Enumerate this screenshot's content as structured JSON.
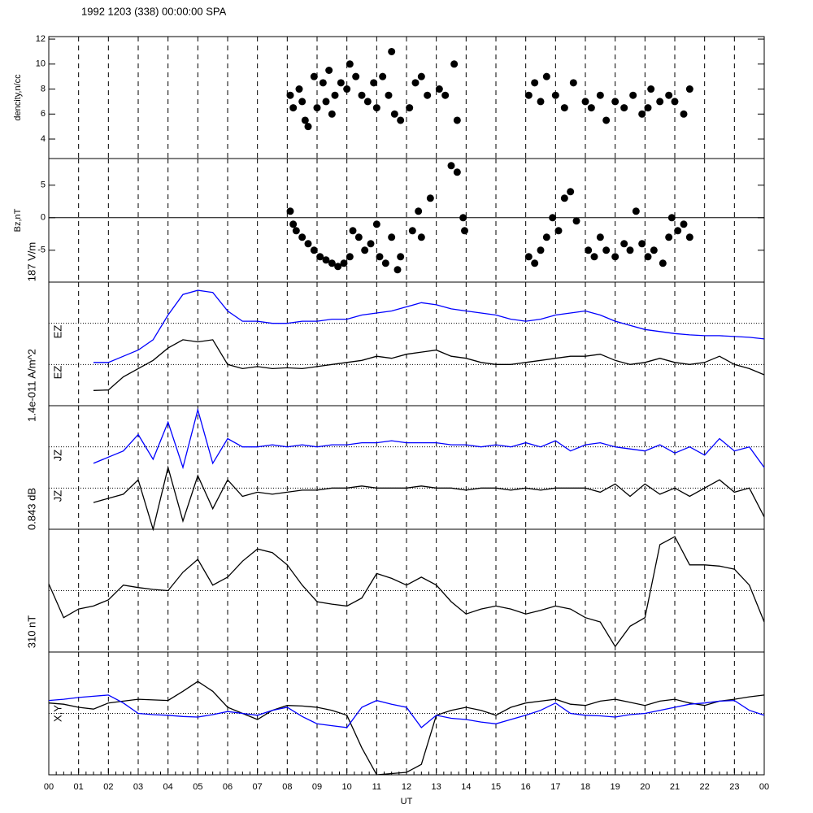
{
  "chart_data": [
    {
      "type": "scatter",
      "title": "1992 1203 (338) 00:00:00 SPA",
      "ylabel": "dencity,n/cc",
      "color": "#000000",
      "x": [
        8.1,
        8.2,
        8.4,
        8.5,
        8.6,
        8.7,
        8.9,
        9.0,
        9.2,
        9.3,
        9.4,
        9.5,
        9.6,
        9.8,
        10.0,
        10.1,
        10.3,
        10.5,
        10.7,
        10.9,
        11.0,
        11.2,
        11.4,
        11.6,
        11.8,
        12.1,
        12.3,
        12.5,
        12.7,
        13.1,
        13.3,
        13.6,
        13.7,
        16.1,
        16.3,
        16.5,
        16.7,
        17.0,
        17.3,
        17.6,
        18.0,
        18.2,
        18.5,
        18.7,
        19.0,
        19.3,
        19.6,
        19.9,
        20.2,
        20.5,
        20.8,
        21.0,
        21.3,
        21.5,
        20.1,
        11.5
      ],
      "values": [
        7.5,
        6.5,
        8,
        7,
        5.5,
        5,
        9,
        6.5,
        8.5,
        7,
        9.5,
        6,
        7.5,
        8.5,
        8,
        10,
        9,
        7.5,
        7,
        8.5,
        6.5,
        9,
        7.5,
        6,
        5.5,
        6.5,
        8.5,
        9,
        7.5,
        8,
        7.5,
        10,
        5.5,
        7.5,
        8.5,
        7,
        9,
        7.5,
        6.5,
        8.5,
        7,
        6.5,
        7.5,
        5.5,
        7,
        6.5,
        7.5,
        6,
        8,
        7,
        7.5,
        7,
        6,
        8,
        6.5,
        11
      ],
      "ylim": [
        2.44,
        12.2
      ],
      "yticks": [
        4,
        6,
        8,
        10,
        12
      ]
    },
    {
      "type": "scatter",
      "ylabel": "Bz,nT",
      "color": "#000000",
      "zero_line": true,
      "x": [
        8.1,
        8.2,
        8.3,
        8.5,
        8.7,
        8.9,
        9.1,
        9.3,
        9.5,
        9.7,
        9.9,
        10.1,
        10.2,
        10.4,
        10.6,
        10.8,
        11.0,
        11.1,
        11.3,
        11.5,
        11.7,
        11.8,
        12.2,
        12.4,
        12.5,
        12.8,
        13.5,
        13.7,
        13.9,
        13.95,
        16.1,
        16.3,
        16.5,
        16.7,
        16.9,
        17.1,
        17.3,
        17.5,
        17.7,
        18.1,
        18.3,
        18.5,
        18.7,
        19.0,
        19.3,
        19.5,
        19.7,
        19.9,
        20.1,
        20.3,
        20.6,
        20.8,
        20.9,
        21.1,
        21.3,
        21.5
      ],
      "values": [
        1,
        -1,
        -2,
        -3,
        -4,
        -5,
        -6,
        -6.5,
        -7,
        -7.5,
        -7,
        -6,
        -2,
        -3,
        -5,
        -4,
        -1,
        -6,
        -7,
        -3,
        -8,
        -6,
        -2,
        1,
        -3,
        3,
        8,
        7,
        0,
        -2,
        -6,
        -7,
        -5,
        -3,
        0,
        -2,
        3,
        4,
        -0.5,
        -5,
        -6,
        -3,
        -5,
        -6,
        -4,
        -5,
        1,
        -4,
        -6,
        -5,
        -7,
        -3,
        0,
        -2,
        -1,
        -3
      ],
      "ylim": [
        -9.9,
        9.1
      ],
      "yticks": [
        -5,
        0,
        5
      ]
    },
    {
      "type": "line",
      "scale_label": "187 V/m",
      "ylim": [
        0,
        3
      ],
      "reference_lines": [
        1,
        2
      ],
      "x": [
        0,
        0.5,
        1,
        1.5,
        2,
        2.5,
        3,
        3.5,
        4,
        4.5,
        5,
        5.5,
        6,
        6.5,
        7,
        7.5,
        8,
        8.5,
        9,
        9.5,
        10,
        10.5,
        11,
        11.5,
        12,
        12.5,
        13,
        13.5,
        14,
        14.5,
        15,
        15.5,
        16,
        16.5,
        17,
        17.5,
        18,
        18.5,
        19,
        19.5,
        20,
        20.5,
        21,
        21.5,
        22,
        22.5,
        23,
        23.5,
        24
      ],
      "series": [
        {
          "name": "EZ",
          "color": "#0000ff",
          "values": [
            null,
            null,
            null,
            1.05,
            1.05,
            1.2,
            1.35,
            1.6,
            2.2,
            2.7,
            2.8,
            2.75,
            2.3,
            2.05,
            2.05,
            2.0,
            2.0,
            2.05,
            2.05,
            2.1,
            2.1,
            2.2,
            2.25,
            2.3,
            2.4,
            2.5,
            2.45,
            2.35,
            2.3,
            2.25,
            2.2,
            2.1,
            2.05,
            2.1,
            2.2,
            2.25,
            2.3,
            2.2,
            2.05,
            1.95,
            1.85,
            1.8,
            1.75,
            1.72,
            1.7,
            1.7,
            1.68,
            1.66,
            1.62
          ]
        },
        {
          "name": "EZ",
          "color": "#000000",
          "values": [
            null,
            null,
            null,
            0.37,
            0.38,
            0.7,
            0.9,
            1.1,
            1.4,
            1.6,
            1.55,
            1.6,
            1.0,
            0.9,
            0.95,
            0.9,
            0.92,
            0.9,
            0.95,
            1.0,
            1.05,
            1.1,
            1.2,
            1.15,
            1.25,
            1.3,
            1.35,
            1.2,
            1.15,
            1.05,
            1.0,
            1.0,
            1.05,
            1.1,
            1.15,
            1.2,
            1.2,
            1.25,
            1.1,
            1.0,
            1.05,
            1.15,
            1.05,
            1.0,
            1.05,
            1.2,
            1.0,
            0.9,
            0.75
          ]
        }
      ]
    },
    {
      "type": "line",
      "scale_label": "1.4e-011 A/m^2",
      "ylim": [
        0,
        3
      ],
      "reference_lines": [
        1,
        2
      ],
      "x": [
        0,
        0.5,
        1,
        1.5,
        2,
        2.5,
        3,
        3.5,
        4,
        4.5,
        5,
        5.5,
        6,
        6.5,
        7,
        7.5,
        8,
        8.5,
        9,
        9.5,
        10,
        10.5,
        11,
        11.5,
        12,
        12.5,
        13,
        13.5,
        14,
        14.5,
        15,
        15.5,
        16,
        16.5,
        17,
        17.5,
        18,
        18.5,
        19,
        19.5,
        20,
        20.5,
        21,
        21.5,
        22,
        22.5,
        23,
        23.5,
        24
      ],
      "series": [
        {
          "name": "JZ",
          "color": "#0000ff",
          "values": [
            null,
            null,
            null,
            1.6,
            1.75,
            1.9,
            2.3,
            1.7,
            2.6,
            1.5,
            2.9,
            1.6,
            2.2,
            2.0,
            2.0,
            2.05,
            2.0,
            2.05,
            2.0,
            2.05,
            2.05,
            2.1,
            2.1,
            2.15,
            2.1,
            2.1,
            2.1,
            2.05,
            2.05,
            2.0,
            2.05,
            2.0,
            2.1,
            2.0,
            2.15,
            1.9,
            2.05,
            2.1,
            2.0,
            1.95,
            1.9,
            2.05,
            1.85,
            2.0,
            1.8,
            2.2,
            1.9,
            2.0,
            1.5
          ]
        },
        {
          "name": "JZ",
          "color": "#000000",
          "values": [
            null,
            null,
            null,
            0.65,
            0.75,
            0.85,
            1.2,
            0.0,
            1.5,
            0.2,
            1.3,
            0.5,
            1.2,
            0.8,
            0.9,
            0.85,
            0.9,
            0.95,
            0.95,
            1.0,
            1.0,
            1.05,
            1.0,
            1.0,
            1.0,
            1.05,
            1.0,
            1.0,
            0.95,
            1.0,
            1.0,
            0.95,
            1.0,
            0.95,
            1.0,
            1.0,
            1.0,
            0.9,
            1.1,
            0.8,
            1.1,
            0.85,
            1.0,
            0.8,
            1.0,
            1.2,
            0.9,
            1.0,
            0.3
          ]
        }
      ]
    },
    {
      "type": "line",
      "scale_label": "0.843 dB",
      "ylim": [
        0,
        2
      ],
      "reference_lines": [
        1
      ],
      "x": [
        0,
        0.5,
        1,
        1.5,
        2,
        2.5,
        3,
        3.5,
        4,
        4.5,
        5,
        5.5,
        6,
        6.5,
        7,
        7.5,
        8,
        8.5,
        9,
        9.5,
        10,
        10.5,
        11,
        11.5,
        12,
        12.5,
        13,
        13.5,
        14,
        14.5,
        15,
        15.5,
        16,
        16.5,
        17,
        17.5,
        18,
        18.5,
        19,
        19.5,
        20,
        20.5,
        21,
        21.5,
        22,
        22.5,
        23,
        23.5,
        24
      ],
      "series": [
        {
          "color": "#000000",
          "values": [
            1.11,
            0.56,
            0.7,
            0.75,
            0.85,
            1.09,
            1.05,
            1.02,
            1.0,
            1.3,
            1.51,
            1.09,
            1.22,
            1.48,
            1.68,
            1.62,
            1.42,
            1.09,
            0.82,
            0.78,
            0.75,
            0.88,
            1.28,
            1.2,
            1.09,
            1.22,
            1.09,
            0.82,
            0.62,
            0.7,
            0.75,
            0.7,
            0.62,
            0.68,
            0.75,
            0.7,
            0.56,
            0.49,
            0.09,
            0.42,
            0.56,
            1.75,
            1.88,
            1.42,
            1.42,
            1.4,
            1.35,
            1.09,
            0.49
          ]
        }
      ]
    },
    {
      "type": "line",
      "scale_label": "310 nT",
      "ylabel": "X,Y",
      "ylim": [
        0,
        2
      ],
      "reference_lines": [
        1
      ],
      "x": [
        0,
        0.5,
        1,
        1.5,
        2,
        2.5,
        3,
        3.5,
        4,
        4.5,
        5,
        5.5,
        6,
        6.5,
        7,
        7.5,
        8,
        8.5,
        9,
        9.5,
        10,
        10.5,
        11,
        11.5,
        12,
        12.5,
        13,
        13.5,
        14,
        14.5,
        15,
        15.5,
        16,
        16.5,
        17,
        17.5,
        18,
        18.5,
        19,
        19.5,
        20,
        20.5,
        21,
        21.5,
        22,
        22.5,
        23,
        23.5,
        24
      ],
      "series": [
        {
          "color": "#000000",
          "values": [
            1.17,
            1.15,
            1.1,
            1.07,
            1.17,
            1.2,
            1.23,
            1.22,
            1.21,
            1.36,
            1.52,
            1.36,
            1.1,
            1.0,
            0.9,
            1.05,
            1.13,
            1.12,
            1.1,
            1.05,
            0.97,
            0.44,
            0,
            0.02,
            0.04,
            0.17,
            0.97,
            1.05,
            1.1,
            1.05,
            0.97,
            1.1,
            1.17,
            1.2,
            1.23,
            1.15,
            1.13,
            1.2,
            1.23,
            1.18,
            1.13,
            1.2,
            1.23,
            1.17,
            1.13,
            1.2,
            1.23,
            1.27,
            1.3
          ]
        },
        {
          "color": "#0000ff",
          "values": [
            1.21,
            1.23,
            1.26,
            1.28,
            1.3,
            1.17,
            1.0,
            0.98,
            0.97,
            0.95,
            0.94,
            0.98,
            1.03,
            1.0,
            0.97,
            1.05,
            1.1,
            0.95,
            0.83,
            0.8,
            0.77,
            1.1,
            1.21,
            1.15,
            1.1,
            0.77,
            0.97,
            0.92,
            0.9,
            0.86,
            0.83,
            0.9,
            0.97,
            1.05,
            1.17,
            1.0,
            0.97,
            0.96,
            0.94,
            0.98,
            1.0,
            1.05,
            1.1,
            1.15,
            1.17,
            1.2,
            1.21,
            1.05,
            0.97
          ]
        }
      ],
      "xlabel": "UT",
      "xlim": [
        0,
        24
      ],
      "xticks": [
        {
          "value": 0,
          "label": "00"
        },
        {
          "value": 1,
          "label": "01"
        },
        {
          "value": 2,
          "label": "02"
        },
        {
          "value": 3,
          "label": "03"
        },
        {
          "value": 4,
          "label": "04"
        },
        {
          "value": 5,
          "label": "05"
        },
        {
          "value": 6,
          "label": "06"
        },
        {
          "value": 7,
          "label": "07"
        },
        {
          "value": 8,
          "label": "08"
        },
        {
          "value": 9,
          "label": "09"
        },
        {
          "value": 10,
          "label": "10"
        },
        {
          "value": 11,
          "label": "11"
        },
        {
          "value": 12,
          "label": "12"
        },
        {
          "value": 13,
          "label": "13"
        },
        {
          "value": 14,
          "label": "14"
        },
        {
          "value": 15,
          "label": "15"
        },
        {
          "value": 16,
          "label": "16"
        },
        {
          "value": 17,
          "label": "17"
        },
        {
          "value": 18,
          "label": "18"
        },
        {
          "value": 19,
          "label": "19"
        },
        {
          "value": 20,
          "label": "20"
        },
        {
          "value": 21,
          "label": "21"
        },
        {
          "value": 22,
          "label": "22"
        },
        {
          "value": 23,
          "label": "23"
        },
        {
          "value": 24,
          "label": "00"
        }
      ]
    }
  ]
}
